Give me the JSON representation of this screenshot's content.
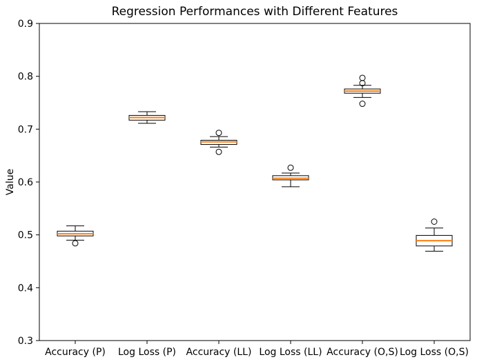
{
  "figure": {
    "background": "#ffffff"
  },
  "chart_data": {
    "type": "box",
    "title": "Regression Performances with Different Features",
    "xlabel": "",
    "ylabel": "Value",
    "ylim": [
      0.3,
      0.9
    ],
    "yticks": [
      0.3,
      0.4,
      0.5,
      0.6,
      0.7,
      0.8,
      0.9
    ],
    "grid": false,
    "legend": null,
    "colors": {
      "median": "#ff7f0e",
      "box_edge": "#000000",
      "box_fill": "#ffffff",
      "axis": "#000000",
      "background": "#ffffff"
    },
    "categories": [
      "Accuracy (P)",
      "Log Loss (P)",
      "Accuracy (LL)",
      "Log Loss (LL)",
      "Accuracy (O,S)",
      "Log Loss (O,S)"
    ],
    "boxes": [
      {
        "label": "Accuracy (P)",
        "whislo": 0.49,
        "q1": 0.498,
        "med": 0.502,
        "q3": 0.507,
        "whishi": 0.517,
        "fliers": [
          0.484
        ]
      },
      {
        "label": "Log Loss (P)",
        "whislo": 0.711,
        "q1": 0.717,
        "med": 0.722,
        "q3": 0.726,
        "whishi": 0.733,
        "fliers": []
      },
      {
        "label": "Accuracy (LL)",
        "whislo": 0.666,
        "q1": 0.671,
        "med": 0.676,
        "q3": 0.679,
        "whishi": 0.686,
        "fliers": [
          0.693,
          0.657
        ]
      },
      {
        "label": "Log Loss (LL)",
        "whislo": 0.591,
        "q1": 0.604,
        "med": 0.607,
        "q3": 0.612,
        "whishi": 0.617,
        "fliers": [
          0.627
        ]
      },
      {
        "label": "Accuracy (O,S)",
        "whislo": 0.76,
        "q1": 0.768,
        "med": 0.772,
        "q3": 0.776,
        "whishi": 0.783,
        "fliers": [
          0.797,
          0.787,
          0.748
        ]
      },
      {
        "label": "Log Loss (O,S)",
        "whislo": 0.469,
        "q1": 0.479,
        "med": 0.489,
        "q3": 0.499,
        "whishi": 0.513,
        "fliers": [
          0.525
        ]
      }
    ]
  }
}
